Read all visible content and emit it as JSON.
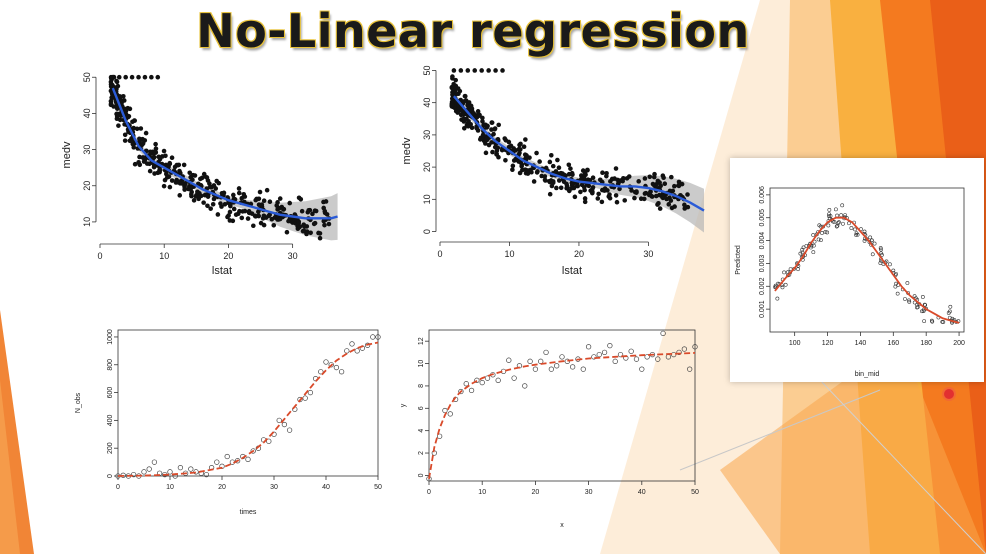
{
  "slide": {
    "title": "No-Linear regression",
    "colors": {
      "accent_orange": "#f47a1f",
      "title_outline": "#e8c23a",
      "fit_blue": "#2a5bd7",
      "fit_red": "#d94a2a"
    }
  },
  "chart_data": [
    {
      "type": "scatter",
      "xlabel": "lstat",
      "ylabel": "medv",
      "xticks": [
        0,
        10,
        20,
        30
      ],
      "yticks": [
        10,
        20,
        30,
        40,
        50
      ],
      "xlim": [
        0,
        38
      ],
      "ylim": [
        5,
        52
      ],
      "fit": {
        "color": "#2a5bd7",
        "band": true,
        "x": [
          2,
          4,
          6,
          8,
          10,
          12,
          14,
          16,
          18,
          20,
          22,
          24,
          26,
          28,
          30,
          32,
          34,
          36,
          37
        ],
        "y": [
          47,
          38,
          31,
          27,
          25,
          23,
          21,
          19,
          17.5,
          16,
          15,
          14,
          13,
          12,
          11.5,
          11,
          11,
          11,
          11.5
        ]
      }
    },
    {
      "type": "scatter",
      "xlabel": "lstat",
      "ylabel": "medv",
      "xticks": [
        0,
        10,
        20,
        30
      ],
      "yticks": [
        0,
        10,
        20,
        30,
        40,
        50
      ],
      "xlim": [
        0,
        38
      ],
      "ylim": [
        -2,
        52
      ],
      "fit": {
        "color": "#2a5bd7",
        "band": true,
        "x": [
          2,
          4,
          6,
          8,
          10,
          12,
          14,
          16,
          18,
          20,
          22,
          24,
          26,
          28,
          30,
          32,
          34,
          36,
          38
        ],
        "y": [
          42,
          37,
          32,
          28,
          25,
          22,
          20,
          18,
          16.5,
          15.5,
          15,
          14.5,
          14,
          14,
          13.5,
          12.5,
          11,
          9,
          6.5
        ]
      }
    },
    {
      "type": "scatter",
      "xlabel": "bin_mid",
      "ylabel": "Predicted",
      "xticks": [
        100,
        120,
        140,
        160,
        180,
        200
      ],
      "yticks": [
        0.001,
        0.002,
        0.003,
        0.004,
        0.005,
        0.006
      ],
      "xlim": [
        85,
        203
      ],
      "ylim": [
        0,
        0.0063
      ],
      "fit": {
        "color": "#d94a2a",
        "band": false,
        "x": [
          88,
          95,
          100,
          105,
          110,
          115,
          120,
          125,
          130,
          135,
          140,
          145,
          150,
          155,
          160,
          165,
          170,
          175,
          180,
          185,
          190,
          195,
          200
        ],
        "y": [
          0.0018,
          0.0024,
          0.0028,
          0.0033,
          0.0039,
          0.0044,
          0.0048,
          0.005,
          0.005,
          0.0048,
          0.0044,
          0.004,
          0.0035,
          0.003,
          0.0025,
          0.002,
          0.0016,
          0.0013,
          0.001,
          0.0008,
          0.0006,
          0.0005,
          0.0004
        ]
      }
    },
    {
      "type": "scatter",
      "xlabel": "times",
      "ylabel": "N_obs",
      "xticks": [
        0,
        10,
        20,
        30,
        40,
        50
      ],
      "yticks": [
        0,
        200,
        400,
        600,
        800,
        1000
      ],
      "xlim": [
        0,
        50
      ],
      "ylim": [
        0,
        1050
      ],
      "points": {
        "x": [
          0,
          1,
          2,
          3,
          4,
          5,
          6,
          7,
          8,
          9,
          10,
          11,
          12,
          13,
          14,
          15,
          16,
          17,
          18,
          19,
          20,
          21,
          22,
          23,
          24,
          25,
          26,
          27,
          28,
          29,
          30,
          31,
          32,
          33,
          34,
          35,
          36,
          37,
          38,
          39,
          40,
          41,
          42,
          43,
          44,
          45,
          46,
          47,
          48,
          49,
          50
        ],
        "y": [
          0,
          5,
          0,
          10,
          0,
          30,
          50,
          100,
          20,
          10,
          30,
          0,
          60,
          20,
          50,
          30,
          20,
          10,
          60,
          100,
          70,
          140,
          100,
          110,
          140,
          120,
          180,
          200,
          260,
          250,
          300,
          400,
          370,
          330,
          480,
          550,
          560,
          600,
          700,
          750,
          820,
          800,
          780,
          750,
          900,
          950,
          900,
          920,
          940,
          1000,
          1000
        ]
      },
      "fit": {
        "color": "#d94a2a",
        "dashed": true,
        "x": [
          0,
          5,
          10,
          15,
          20,
          22,
          24,
          26,
          28,
          30,
          32,
          34,
          36,
          38,
          40,
          42,
          44,
          46,
          48,
          50
        ],
        "y": [
          0,
          3,
          10,
          25,
          60,
          90,
          130,
          180,
          240,
          320,
          410,
          500,
          590,
          680,
          760,
          830,
          880,
          920,
          945,
          960
        ]
      }
    },
    {
      "type": "scatter",
      "xlabel": "x",
      "ylabel": "y",
      "xticks": [
        0,
        10,
        20,
        30,
        40,
        50
      ],
      "yticks": [
        0,
        2,
        4,
        6,
        8,
        10,
        12
      ],
      "xlim": [
        0,
        50
      ],
      "ylim": [
        -0.5,
        13
      ],
      "points": {
        "x": [
          0,
          1,
          2,
          3,
          4,
          5,
          6,
          7,
          8,
          9,
          10,
          11,
          12,
          13,
          14,
          15,
          16,
          17,
          18,
          19,
          20,
          21,
          22,
          23,
          24,
          25,
          26,
          27,
          28,
          29,
          30,
          31,
          32,
          33,
          34,
          35,
          36,
          37,
          38,
          39,
          40,
          41,
          42,
          43,
          44,
          45,
          46,
          47,
          48,
          49,
          50
        ],
        "y": [
          -0.3,
          2,
          3.5,
          5.8,
          5.5,
          6.8,
          7.5,
          8.2,
          7.6,
          8.5,
          8.3,
          8.7,
          9,
          8.5,
          9.3,
          10.3,
          8.7,
          9.8,
          8,
          10.2,
          9.5,
          10.2,
          11,
          9.5,
          9.8,
          10.6,
          10.2,
          9.7,
          10.4,
          9.5,
          11.5,
          10.6,
          10.8,
          11,
          11.6,
          10.2,
          10.8,
          10.5,
          11.1,
          10.4,
          9.5,
          10.6,
          10.8,
          10.4,
          12.7,
          10.6,
          10.8,
          11,
          11.3,
          9.5,
          11.5
        ]
      },
      "fit": {
        "color": "#d94a2a",
        "dashed": true,
        "x": [
          0,
          1,
          2,
          3,
          4,
          5,
          6,
          8,
          10,
          12,
          15,
          18,
          20,
          25,
          30,
          35,
          40,
          45,
          50
        ],
        "y": [
          -0.3,
          2.5,
          4.2,
          5.4,
          6.3,
          7,
          7.5,
          8.2,
          8.7,
          9.05,
          9.45,
          9.75,
          9.9,
          10.2,
          10.45,
          10.6,
          10.75,
          10.85,
          10.95
        ]
      }
    }
  ]
}
